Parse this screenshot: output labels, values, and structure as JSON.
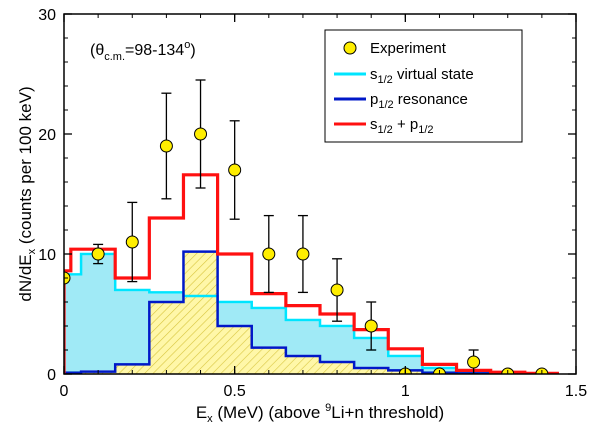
{
  "chart_data": {
    "type": "step-histogram",
    "xlabel": {
      "main": "E",
      "sub": "x",
      "rest": " (MeV) (above ",
      "sup": "9",
      "tail": "Li+n threshold)"
    },
    "ylabel": {
      "main": "dN/dE",
      "sub": "x",
      "rest": " (counts per 100 keV)"
    },
    "xlim": [
      0,
      1.5
    ],
    "ylim": [
      0,
      30
    ],
    "x_ticks": [
      0,
      0.5,
      1,
      1.5
    ],
    "x_tick_labels": [
      "0",
      "0.5",
      "1",
      "1.5"
    ],
    "y_ticks": [
      0,
      10,
      20,
      30
    ],
    "y_tick_labels": [
      "0",
      "10",
      "20",
      "30"
    ],
    "annotation": {
      "open": "(θ",
      "sub": "c.m.",
      "mid": "=98-134",
      "sup": "o",
      "close": ")"
    },
    "legend": {
      "position": "top-right",
      "entries": [
        {
          "key": "experiment",
          "main": "Experiment",
          "sub": "",
          "rest": "",
          "sub2": "",
          "tail": ""
        },
        {
          "key": "s12",
          "main": "s",
          "sub": "1/2",
          "rest": " virtual state",
          "sub2": "",
          "tail": ""
        },
        {
          "key": "p12",
          "main": "p",
          "sub": "1/2",
          "rest": " resonance",
          "sub2": "",
          "tail": ""
        },
        {
          "key": "sum",
          "main": "s",
          "sub": "1/2",
          "rest": " + p",
          "sub2": "1/2",
          "tail": ""
        }
      ]
    },
    "colors": {
      "experiment_fill": "#ffee00",
      "s12_line": "#00e5ff",
      "s12_fill": "#aeeaf3",
      "p12_line": "#0018c8",
      "p12_fill": "#fff59a",
      "sum_line": "#ff1010",
      "error_bar": "#000000"
    },
    "series": [
      {
        "key": "s12",
        "bin_edges": [
          0,
          0.05,
          0.15,
          0.25,
          0.35,
          0.45,
          0.55,
          0.65,
          0.75,
          0.85,
          0.95,
          1.05,
          1.15,
          1.25,
          1.35,
          1.45
        ],
        "values": [
          8.3,
          10.0,
          7.0,
          6.8,
          6.5,
          6.0,
          5.5,
          4.5,
          4.0,
          3.0,
          1.5,
          0.5,
          0.2,
          0.1,
          0.05
        ]
      },
      {
        "key": "p12",
        "bin_edges": [
          0,
          0.05,
          0.15,
          0.25,
          0.35,
          0.45,
          0.55,
          0.65,
          0.75,
          0.85,
          0.95,
          1.05,
          1.15,
          1.25,
          1.35,
          1.45
        ],
        "values": [
          0.1,
          0.2,
          0.8,
          6.0,
          10.2,
          4.0,
          2.2,
          1.5,
          1.0,
          0.5,
          0.3,
          0.1,
          0.05,
          0.05,
          0.02
        ]
      },
      {
        "key": "sum",
        "bin_edges": [
          0,
          0.02,
          0.15,
          0.25,
          0.35,
          0.45,
          0.55,
          0.65,
          0.75,
          0.85,
          0.95,
          1.05,
          1.15,
          1.25,
          1.35,
          1.45
        ],
        "values": [
          8.6,
          10.4,
          8.0,
          13.0,
          16.6,
          10.0,
          6.7,
          5.7,
          5.0,
          3.7,
          2.1,
          0.8,
          0.3,
          0.15,
          0.05
        ]
      }
    ],
    "experiment": {
      "x": [
        0,
        0.1,
        0.2,
        0.3,
        0.4,
        0.5,
        0.6,
        0.7,
        0.8,
        0.9,
        1.0,
        1.1,
        1.3,
        1.4,
        1.2
      ],
      "y": [
        8,
        10,
        11,
        19,
        20,
        17,
        10,
        10,
        7,
        4,
        0,
        0,
        0,
        0,
        1
      ],
      "err": [
        0,
        0.8,
        3.3,
        4.4,
        4.5,
        4.1,
        3.2,
        3.2,
        2.6,
        2.0,
        0,
        0,
        0,
        0,
        1.0
      ]
    }
  }
}
